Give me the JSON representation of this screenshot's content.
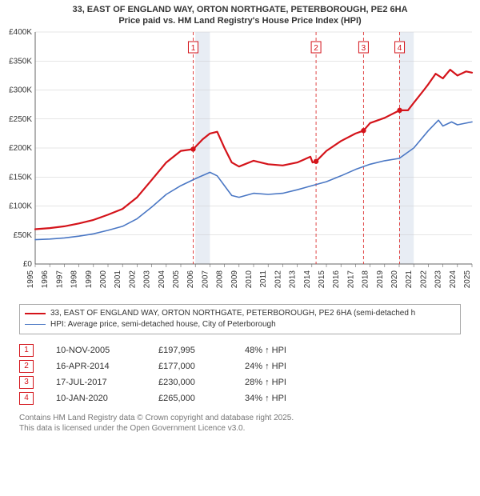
{
  "title_line1": "33, EAST OF ENGLAND WAY, ORTON NORTHGATE, PETERBOROUGH, PE2 6HA",
  "title_line2": "Price paid vs. HM Land Registry's House Price Index (HPI)",
  "chart": {
    "type": "line",
    "background_color": "#ffffff",
    "grid_color": "#cccccc",
    "axis_color": "#666666",
    "band_fill": "#e8edf4",
    "band_years": [
      2006,
      2020
    ],
    "event_line_color": "#d33",
    "event_line_dash": "4 3",
    "label_color": "#333333",
    "label_fontsize": 10,
    "x": {
      "min": 1995,
      "max": 2025,
      "ticks": [
        1995,
        1996,
        1997,
        1998,
        1999,
        2000,
        2001,
        2002,
        2003,
        2004,
        2005,
        2006,
        2007,
        2008,
        2009,
        2010,
        2011,
        2012,
        2013,
        2014,
        2015,
        2016,
        2017,
        2018,
        2019,
        2020,
        2021,
        2022,
        2023,
        2024,
        2025
      ]
    },
    "y": {
      "min": 0,
      "max": 400000,
      "ticks": [
        0,
        50000,
        100000,
        150000,
        200000,
        250000,
        300000,
        350000,
        400000
      ],
      "tick_labels": [
        "£0",
        "£50K",
        "£100K",
        "£150K",
        "£200K",
        "£250K",
        "£300K",
        "£350K",
        "£400K"
      ]
    },
    "series": [
      {
        "id": "property",
        "color": "#d4131a",
        "line_width": 2.2,
        "data": [
          [
            1995,
            60000
          ],
          [
            1996,
            62000
          ],
          [
            1997,
            65000
          ],
          [
            1998,
            70000
          ],
          [
            1999,
            76000
          ],
          [
            2000,
            85000
          ],
          [
            2001,
            95000
          ],
          [
            2002,
            115000
          ],
          [
            2003,
            145000
          ],
          [
            2004,
            175000
          ],
          [
            2005,
            195000
          ],
          [
            2005.85,
            197995
          ],
          [
            2006.5,
            215000
          ],
          [
            2007,
            225000
          ],
          [
            2007.5,
            228000
          ],
          [
            2008,
            200000
          ],
          [
            2008.5,
            175000
          ],
          [
            2009,
            168000
          ],
          [
            2010,
            178000
          ],
          [
            2011,
            172000
          ],
          [
            2012,
            170000
          ],
          [
            2013,
            175000
          ],
          [
            2013.9,
            185000
          ],
          [
            2014.05,
            175000
          ],
          [
            2014.29,
            177000
          ],
          [
            2015,
            195000
          ],
          [
            2016,
            212000
          ],
          [
            2017,
            225000
          ],
          [
            2017.55,
            230000
          ],
          [
            2018,
            243000
          ],
          [
            2019,
            252000
          ],
          [
            2020.03,
            265000
          ],
          [
            2020.6,
            265000
          ],
          [
            2021,
            278000
          ],
          [
            2021.7,
            300000
          ],
          [
            2022,
            310000
          ],
          [
            2022.5,
            328000
          ],
          [
            2023,
            320000
          ],
          [
            2023.5,
            335000
          ],
          [
            2024,
            325000
          ],
          [
            2024.6,
            332000
          ],
          [
            2025,
            330000
          ]
        ]
      },
      {
        "id": "hpi",
        "color": "#4a77c4",
        "line_width": 1.6,
        "data": [
          [
            1995,
            42000
          ],
          [
            1996,
            43000
          ],
          [
            1997,
            45000
          ],
          [
            1998,
            48000
          ],
          [
            1999,
            52000
          ],
          [
            2000,
            58000
          ],
          [
            2001,
            65000
          ],
          [
            2002,
            78000
          ],
          [
            2003,
            98000
          ],
          [
            2004,
            120000
          ],
          [
            2005,
            135000
          ],
          [
            2006,
            147000
          ],
          [
            2007,
            158000
          ],
          [
            2007.5,
            152000
          ],
          [
            2008,
            135000
          ],
          [
            2008.5,
            118000
          ],
          [
            2009,
            115000
          ],
          [
            2010,
            122000
          ],
          [
            2011,
            120000
          ],
          [
            2012,
            122000
          ],
          [
            2013,
            128000
          ],
          [
            2014,
            135000
          ],
          [
            2015,
            142000
          ],
          [
            2016,
            152000
          ],
          [
            2017,
            163000
          ],
          [
            2018,
            172000
          ],
          [
            2019,
            178000
          ],
          [
            2020,
            182000
          ],
          [
            2021,
            200000
          ],
          [
            2022,
            230000
          ],
          [
            2022.7,
            248000
          ],
          [
            2023,
            238000
          ],
          [
            2023.6,
            245000
          ],
          [
            2024,
            240000
          ],
          [
            2025,
            245000
          ]
        ]
      }
    ],
    "events": [
      {
        "n": "1",
        "year": 2005.85,
        "value": 197995
      },
      {
        "n": "2",
        "year": 2014.29,
        "value": 177000
      },
      {
        "n": "3",
        "year": 2017.55,
        "value": 230000
      },
      {
        "n": "4",
        "year": 2020.03,
        "value": 265000
      }
    ],
    "event_marker": {
      "border": "#d4131a",
      "text": "#d4131a",
      "fontsize": 10,
      "w": 12,
      "h": 14
    },
    "event_dot": {
      "fill": "#d4131a",
      "r": 3.2
    }
  },
  "legend": {
    "items": [
      {
        "color": "#d4131a",
        "width": 2.2,
        "label": "33, EAST OF ENGLAND WAY, ORTON NORTHGATE, PETERBOROUGH, PE2 6HA (semi-detached h"
      },
      {
        "color": "#4a77c4",
        "width": 1.6,
        "label": "HPI: Average price, semi-detached house, City of Peterborough"
      }
    ]
  },
  "points_table": {
    "marker_border": "#d4131a",
    "marker_text": "#d4131a",
    "rows": [
      {
        "n": "1",
        "date": "10-NOV-2005",
        "price": "£197,995",
        "delta": "48% ↑ HPI"
      },
      {
        "n": "2",
        "date": "16-APR-2014",
        "price": "£177,000",
        "delta": "24% ↑ HPI"
      },
      {
        "n": "3",
        "date": "17-JUL-2017",
        "price": "£230,000",
        "delta": "28% ↑ HPI"
      },
      {
        "n": "4",
        "date": "10-JAN-2020",
        "price": "£265,000",
        "delta": "34% ↑ HPI"
      }
    ]
  },
  "caption_line1": "Contains HM Land Registry data © Crown copyright and database right 2025.",
  "caption_line2": "This data is licensed under the Open Government Licence v3.0."
}
